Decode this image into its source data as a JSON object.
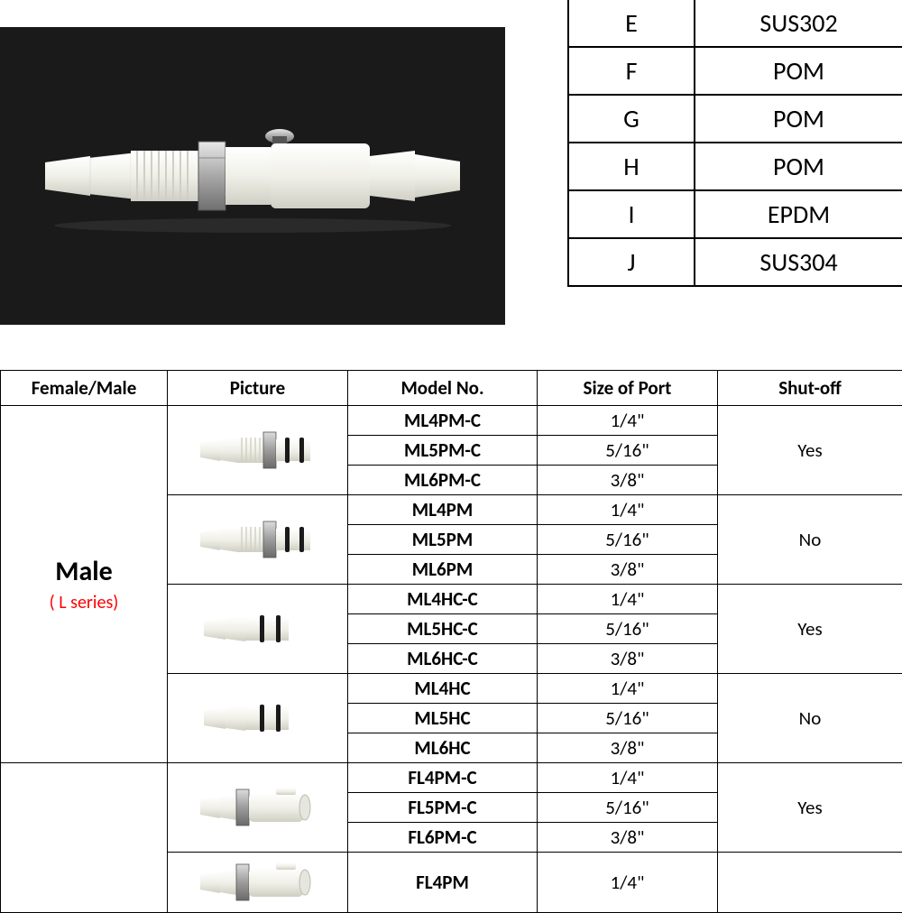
{
  "materials": [
    {
      "letter": "E",
      "material": "SUS302"
    },
    {
      "letter": "F",
      "material": "POM"
    },
    {
      "letter": "G",
      "material": "POM"
    },
    {
      "letter": "H",
      "material": "POM"
    },
    {
      "letter": "I",
      "material": "EPDM"
    },
    {
      "letter": "J",
      "material": "SUS304"
    }
  ],
  "spec_headers": {
    "fm": "Female/Male",
    "pic": "Picture",
    "model": "Model No.",
    "size": "Size of Port",
    "shut": "Shut-off"
  },
  "category": {
    "label": "Male",
    "sub": "( L series)"
  },
  "groups": [
    {
      "shutoff": "Yes",
      "rows": [
        {
          "model": "ML4PM-C",
          "size": "1/4\""
        },
        {
          "model": "ML5PM-C",
          "size": "5/16\""
        },
        {
          "model": "ML6PM-C",
          "size": "3/8\""
        }
      ]
    },
    {
      "shutoff": "No",
      "rows": [
        {
          "model": "ML4PM",
          "size": "1/4\""
        },
        {
          "model": "ML5PM",
          "size": "5/16\""
        },
        {
          "model": "ML6PM",
          "size": "3/8\""
        }
      ]
    },
    {
      "shutoff": "Yes",
      "rows": [
        {
          "model": "ML4HC-C",
          "size": "1/4\""
        },
        {
          "model": "ML5HC-C",
          "size": "5/16\""
        },
        {
          "model": "ML6HC-C",
          "size": "3/8\""
        }
      ]
    },
    {
      "shutoff": "No",
      "rows": [
        {
          "model": "ML4HC",
          "size": "1/4\""
        },
        {
          "model": "ML5HC",
          "size": "5/16\""
        },
        {
          "model": "ML6HC",
          "size": "3/8\""
        }
      ]
    },
    {
      "shutoff": "Yes",
      "rows": [
        {
          "model": "FL4PM-C",
          "size": "1/4\""
        },
        {
          "model": "FL5PM-C",
          "size": "5/16\""
        },
        {
          "model": "FL6PM-C",
          "size": "3/8\""
        }
      ]
    },
    {
      "shutoff": "",
      "rows": [
        {
          "model": "FL4PM",
          "size": "1/4\""
        }
      ]
    }
  ],
  "colors": {
    "plastic": "#f4f4ee",
    "plastic_shadow": "#d8d8d0",
    "metal": "#b8b8b8",
    "oring": "#222222",
    "series_text": "#ff0000"
  }
}
